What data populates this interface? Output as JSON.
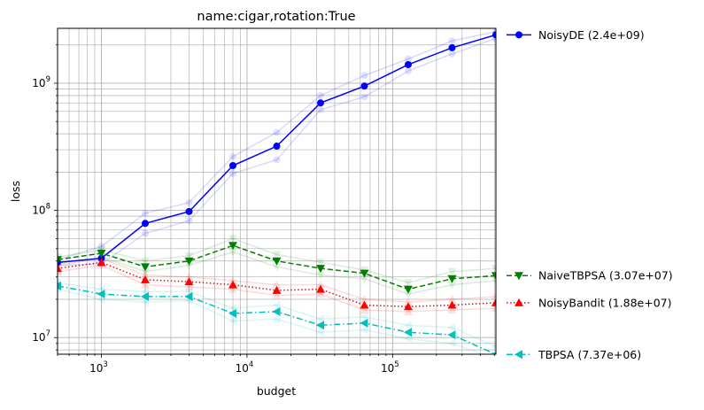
{
  "chart_data": {
    "type": "line",
    "title": "name:cigar,rotation:True",
    "xlabel": "budget",
    "ylabel": "loss",
    "xscale": "log",
    "yscale": "log",
    "xlim": [
      500,
      512000
    ],
    "ylim": [
      7400000,
      2700000000
    ],
    "grid": true,
    "legend_position": "right-outside",
    "x": [
      500,
      1000,
      2000,
      4000,
      8000,
      16000,
      32000,
      64000,
      128000,
      256000,
      512000
    ],
    "x_ticks": [
      {
        "base": "10",
        "exp": "3",
        "value": 1000
      },
      {
        "base": "10",
        "exp": "4",
        "value": 10000
      },
      {
        "base": "10",
        "exp": "5",
        "value": 100000
      }
    ],
    "y_ticks": [
      {
        "base": "10",
        "exp": "7",
        "value": 10000000
      },
      {
        "base": "10",
        "exp": "8",
        "value": 100000000
      },
      {
        "base": "10",
        "exp": "9",
        "value": 1000000000
      }
    ],
    "series": [
      {
        "name": "NoisyDE (2.4e+09)",
        "color": "#0000ff",
        "linestyle": "solid",
        "marker": "circle",
        "values": [
          39000000,
          42000000,
          79000000,
          98000000,
          225000000,
          320000000,
          700000000,
          950000000,
          1400000000,
          1900000000,
          2400000000
        ],
        "band_high": [
          41000000,
          52000000,
          95000000,
          115000000,
          265000000,
          410000000,
          800000000,
          1150000000,
          1550000000,
          2150000000,
          2550000000
        ],
        "band_low": [
          37000000,
          38000000,
          66000000,
          83000000,
          195000000,
          250000000,
          620000000,
          780000000,
          1250000000,
          1700000000,
          2250000000
        ]
      },
      {
        "name": "NaiveTBPSA (3.07e+07)",
        "color": "#008000",
        "linestyle": "dashed",
        "marker": "triangle-down",
        "values": [
          41000000,
          46000000,
          36000000,
          40000000,
          53000000,
          40000000,
          35000000,
          32000000,
          24000000,
          29000000,
          30700000
        ],
        "band_high": [
          43000000,
          49000000,
          40000000,
          44000000,
          60000000,
          45000000,
          39000000,
          34000000,
          27000000,
          33000000,
          35000000
        ],
        "band_low": [
          38000000,
          43000000,
          33000000,
          37000000,
          47000000,
          36000000,
          31000000,
          29000000,
          22000000,
          26000000,
          28000000
        ]
      },
      {
        "name": "NoisyBandit (1.88e+07)",
        "color": "#ff0000",
        "linestyle": "dotted",
        "marker": "triangle-up",
        "values": [
          35000000,
          39000000,
          28500000,
          27500000,
          26000000,
          23500000,
          24000000,
          18000000,
          17500000,
          18000000,
          18800000
        ],
        "band_high": [
          37000000,
          42000000,
          31000000,
          30000000,
          28000000,
          26000000,
          26000000,
          20000000,
          19000000,
          20000000,
          21000000
        ],
        "band_low": [
          33000000,
          37000000,
          26000000,
          25000000,
          24000000,
          21500000,
          22000000,
          16500000,
          16000000,
          16500000,
          17000000
        ]
      },
      {
        "name": "TBPSA (7.37e+06)",
        "color": "#00bfbf",
        "linestyle": "dashdot",
        "marker": "triangle-left",
        "values": [
          25500000,
          22000000,
          21000000,
          21000000,
          15500000,
          16000000,
          12500000,
          13000000,
          11000000,
          10500000,
          7370000
        ],
        "band_high": [
          27000000,
          24000000,
          23000000,
          23000000,
          17000000,
          18000000,
          14000000,
          14500000,
          12500000,
          12000000,
          8500000
        ],
        "band_low": [
          24000000,
          20000000,
          19000000,
          19500000,
          13500000,
          14000000,
          11000000,
          11500000,
          9800000,
          9000000,
          6800000
        ]
      }
    ]
  }
}
